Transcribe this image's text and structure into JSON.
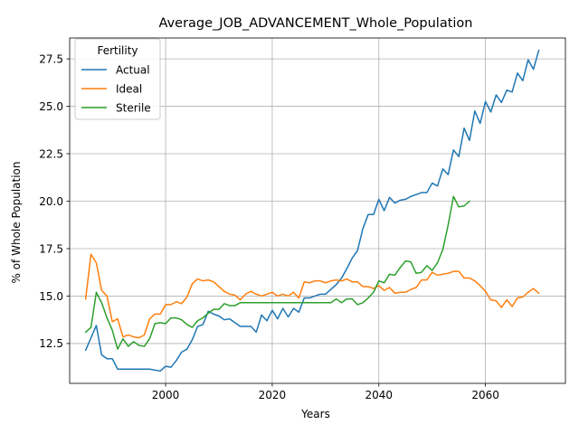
{
  "chart_data": {
    "type": "line",
    "title": "Average_JOB_ADVANCEMENT_Whole_Population",
    "xlabel": "Years",
    "ylabel": "% of Whole Population",
    "xlim": [
      1982,
      2075
    ],
    "ylim": [
      10.4,
      28.6
    ],
    "xticks": [
      2000,
      2020,
      2040,
      2060
    ],
    "yticks": [
      12.5,
      15.0,
      17.5,
      20.0,
      22.5,
      25.0,
      27.5
    ],
    "ytick_labels": [
      "12.5",
      "15.0",
      "17.5",
      "20.0",
      "22.5",
      "25.0",
      "27.5"
    ],
    "grid": true,
    "legend": {
      "title": "Fertility",
      "location": "upper-left"
    },
    "series": [
      {
        "name": "Actual",
        "color": "#1f77b4",
        "x": [
          1985,
          1986,
          1987,
          1988,
          1989,
          1990,
          1991,
          1992,
          1993,
          1994,
          1995,
          1996,
          1997,
          1998,
          1999,
          2000,
          2001,
          2002,
          2003,
          2004,
          2005,
          2006,
          2007,
          2008,
          2009,
          2010,
          2011,
          2012,
          2013,
          2014,
          2015,
          2016,
          2017,
          2018,
          2019,
          2020,
          2021,
          2022,
          2023,
          2024,
          2025,
          2026,
          2027,
          2028,
          2029,
          2030,
          2031,
          2032,
          2033,
          2034,
          2035,
          2036,
          2037,
          2038,
          2039,
          2040,
          2041,
          2042,
          2043,
          2044,
          2045,
          2046,
          2047,
          2048,
          2049,
          2050,
          2051,
          2052,
          2053,
          2054,
          2055,
          2056,
          2057,
          2058,
          2059,
          2060,
          2061,
          2062,
          2063,
          2064,
          2065,
          2066,
          2067,
          2068,
          2069,
          2070
        ],
        "values": [
          12.15,
          12.8,
          13.45,
          11.9,
          11.7,
          11.7,
          11.15,
          11.15,
          11.15,
          11.15,
          11.15,
          11.15,
          11.15,
          11.1,
          11.05,
          11.3,
          11.25,
          11.6,
          12.05,
          12.2,
          12.7,
          13.4,
          13.5,
          14.2,
          14.05,
          13.95,
          13.75,
          13.8,
          13.6,
          13.4,
          13.4,
          13.4,
          13.1,
          14.0,
          13.7,
          14.25,
          13.8,
          14.35,
          13.9,
          14.35,
          14.15,
          14.9,
          14.9,
          15.0,
          15.1,
          15.1,
          15.35,
          15.6,
          15.95,
          16.45,
          17.0,
          17.4,
          18.55,
          19.3,
          19.3,
          20.1,
          19.5,
          20.2,
          19.9,
          20.05,
          20.1,
          20.25,
          20.35,
          20.45,
          20.45,
          20.95,
          20.8,
          21.7,
          21.4,
          22.7,
          22.35,
          23.85,
          23.2,
          24.75,
          24.1,
          25.25,
          24.7,
          25.6,
          25.2,
          25.85,
          25.75,
          26.75,
          26.35,
          27.45,
          26.95,
          27.95
        ]
      },
      {
        "name": "Ideal",
        "color": "#ff7f0e",
        "x": [
          1985,
          1986,
          1987,
          1988,
          1989,
          1990,
          1991,
          1992,
          1993,
          1994,
          1995,
          1996,
          1997,
          1998,
          1999,
          2000,
          2001,
          2002,
          2003,
          2004,
          2005,
          2006,
          2007,
          2008,
          2009,
          2010,
          2011,
          2012,
          2013,
          2014,
          2015,
          2016,
          2017,
          2018,
          2019,
          2020,
          2021,
          2022,
          2023,
          2024,
          2025,
          2026,
          2027,
          2028,
          2029,
          2030,
          2031,
          2032,
          2033,
          2034,
          2035,
          2036,
          2037,
          2038,
          2039,
          2040,
          2041,
          2042,
          2043,
          2044,
          2045,
          2046,
          2047,
          2048,
          2049,
          2050,
          2051,
          2052,
          2053,
          2054,
          2055,
          2056,
          2057,
          2058,
          2059,
          2060,
          2061,
          2062,
          2063,
          2064,
          2065,
          2066,
          2067,
          2068,
          2069,
          2070
        ],
        "values": [
          14.85,
          17.2,
          16.75,
          15.3,
          15.0,
          13.65,
          13.8,
          12.85,
          12.95,
          12.85,
          12.8,
          12.95,
          13.8,
          14.05,
          14.05,
          14.55,
          14.55,
          14.7,
          14.6,
          14.95,
          15.65,
          15.9,
          15.8,
          15.85,
          15.75,
          15.5,
          15.25,
          15.1,
          15.05,
          14.8,
          15.1,
          15.25,
          15.1,
          15.0,
          15.1,
          15.2,
          15.0,
          15.1,
          15.0,
          15.2,
          14.9,
          15.75,
          15.7,
          15.8,
          15.8,
          15.7,
          15.8,
          15.85,
          15.8,
          15.9,
          15.75,
          15.75,
          15.5,
          15.5,
          15.4,
          15.55,
          15.3,
          15.45,
          15.15,
          15.2,
          15.2,
          15.35,
          15.45,
          15.85,
          15.85,
          16.25,
          16.1,
          16.15,
          16.2,
          16.3,
          16.3,
          15.95,
          15.95,
          15.8,
          15.55,
          15.25,
          14.8,
          14.75,
          14.4,
          14.8,
          14.45,
          14.9,
          14.95,
          15.2,
          15.4,
          15.15
        ]
      },
      {
        "name": "Sterile",
        "color": "#2ca02c",
        "x": [
          1985,
          1986,
          1987,
          1988,
          1989,
          1990,
          1991,
          1992,
          1993,
          1994,
          1995,
          1996,
          1997,
          1998,
          1999,
          2000,
          2001,
          2002,
          2003,
          2004,
          2005,
          2006,
          2007,
          2008,
          2009,
          2010,
          2011,
          2012,
          2013,
          2014,
          2015,
          2016,
          2017,
          2018,
          2019,
          2020,
          2021,
          2022,
          2023,
          2024,
          2025,
          2026,
          2027,
          2028,
          2029,
          2030,
          2031,
          2032,
          2033,
          2034,
          2035,
          2036,
          2037,
          2038,
          2039,
          2040,
          2041,
          2042,
          2043,
          2044,
          2045,
          2046,
          2047,
          2048,
          2049,
          2050,
          2051,
          2052,
          2053,
          2054,
          2055,
          2056,
          2057
        ],
        "values": [
          13.1,
          13.35,
          15.2,
          14.65,
          13.85,
          13.2,
          12.2,
          12.75,
          12.35,
          12.6,
          12.4,
          12.35,
          12.75,
          13.55,
          13.6,
          13.55,
          13.85,
          13.85,
          13.75,
          13.5,
          13.35,
          13.7,
          13.85,
          14.1,
          14.3,
          14.3,
          14.6,
          14.5,
          14.5,
          14.65,
          14.65,
          14.65,
          14.65,
          14.65,
          14.65,
          14.65,
          14.65,
          14.65,
          14.65,
          14.65,
          14.65,
          14.65,
          14.65,
          14.65,
          14.65,
          14.65,
          14.65,
          14.85,
          14.65,
          14.85,
          14.85,
          14.55,
          14.65,
          14.9,
          15.2,
          15.8,
          15.7,
          16.15,
          16.1,
          16.5,
          16.85,
          16.8,
          16.2,
          16.25,
          16.6,
          16.35,
          16.75,
          17.45,
          18.75,
          20.25,
          19.7,
          19.75,
          20.0
        ]
      }
    ]
  }
}
